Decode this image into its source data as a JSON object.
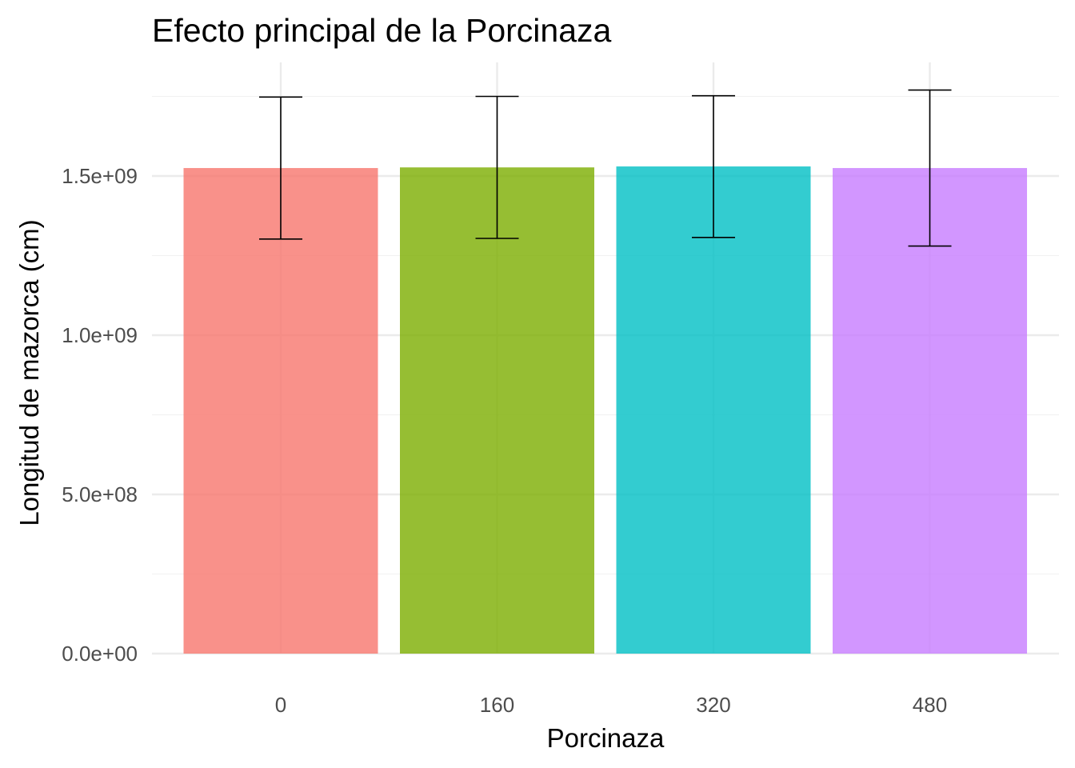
{
  "chart_data": {
    "type": "bar",
    "title": "Efecto principal de la Porcinaza",
    "xlabel": "Porcinaza",
    "ylabel": "Longitud de mazorca (cm)",
    "categories": [
      "0",
      "160",
      "320",
      "480"
    ],
    "values": [
      1525000000,
      1527000000,
      1530000000,
      1525000000
    ],
    "error_low": [
      1302000000,
      1304000000,
      1307000000,
      1280000000
    ],
    "error_high": [
      1748000000,
      1750000000,
      1752000000,
      1770000000
    ],
    "ylim": [
      0,
      1790000000
    ],
    "yticks": [
      0,
      500000000,
      1000000000,
      1500000000
    ],
    "ytick_labels": [
      "0.0e+00",
      "5.0e+08",
      "1.0e+09",
      "1.5e+09"
    ],
    "colors": [
      "#F8766D",
      "#7CAE00",
      "#00BFC4",
      "#C77CFF"
    ],
    "legend": "none",
    "grid": true
  }
}
